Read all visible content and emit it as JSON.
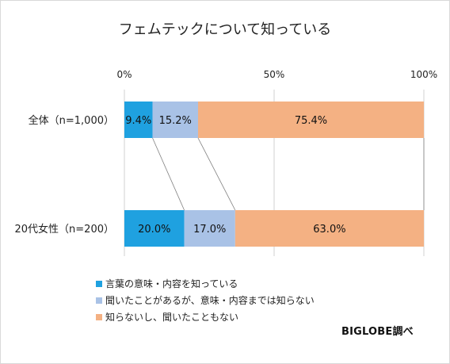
{
  "chart_data": {
    "type": "bar",
    "orientation": "horizontal",
    "stacked": true,
    "title": "フェムテックについて知っている",
    "categories": [
      "全体（n=1,000）",
      "20代女性（n=200）"
    ],
    "series": [
      {
        "name": "言葉の意味・内容を知っている",
        "values": [
          9.4,
          20.0
        ],
        "labels": [
          "9.4%",
          "20.0%"
        ],
        "color": "#1fa1e0"
      },
      {
        "name": "聞いたことがあるが、意味・内容までは知らない",
        "values": [
          15.2,
          17.0
        ],
        "labels": [
          "15.2%",
          "17.0%"
        ],
        "color": "#a9c2e6"
      },
      {
        "name": "知らないし、聞いたこともない",
        "values": [
          75.4,
          63.0
        ],
        "labels": [
          "75.4%",
          "63.0%"
        ],
        "color": "#f4b183"
      }
    ],
    "x_ticks": [
      "0%",
      "50%",
      "100%"
    ],
    "xlim": [
      0,
      100
    ],
    "grid": true,
    "legend_position": "bottom-left",
    "credit": "BIGLOBE調べ"
  }
}
